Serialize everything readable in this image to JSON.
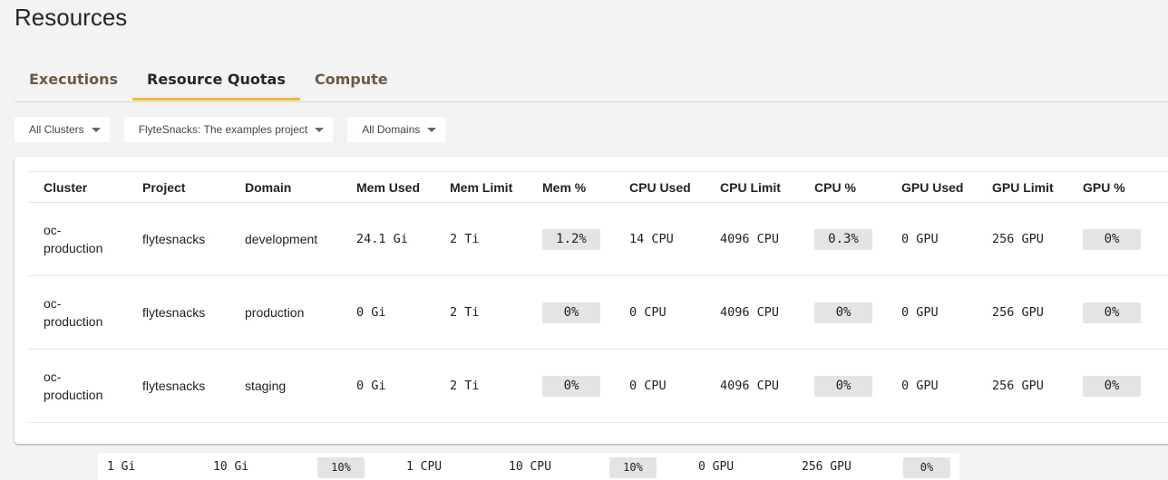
{
  "page_title": "Resources",
  "tabs": [
    {
      "label": "Executions",
      "active": false
    },
    {
      "label": "Resource Quotas",
      "active": true
    },
    {
      "label": "Compute",
      "active": false
    }
  ],
  "filters": [
    {
      "label": "All Clusters"
    },
    {
      "label": "FlyteSnacks: The examples project"
    },
    {
      "label": "All Domains"
    }
  ],
  "table": {
    "columns": [
      "Cluster",
      "Project",
      "Domain",
      "Mem Used",
      "Mem Limit",
      "Mem %",
      "CPU Used",
      "CPU Limit",
      "CPU %",
      "GPU Used",
      "GPU Limit",
      "GPU %"
    ],
    "rows": [
      [
        "oc-production",
        "flytesnacks",
        "development",
        "24.1 Gi",
        "2 Ti",
        "1.2%",
        "14 CPU",
        "4096 CPU",
        "0.3%",
        "0 GPU",
        "256 GPU",
        "0%"
      ],
      [
        "oc-production",
        "flytesnacks",
        "production",
        "0 Gi",
        "2 Ti",
        "0%",
        "0 CPU",
        "4096 CPU",
        "0%",
        "0 GPU",
        "256 GPU",
        "0%"
      ],
      [
        "oc-production",
        "flytesnacks",
        "staging",
        "0 Gi",
        "2 Ti",
        "0%",
        "0 CPU",
        "4096 CPU",
        "0%",
        "0 GPU",
        "256 GPU",
        "0%"
      ]
    ]
  },
  "partial_row": [
    "1 Gi",
    "10 Gi",
    "10%",
    "1 CPU",
    "10 CPU",
    "10%",
    "0 GPU",
    "256 GPU",
    "0%"
  ],
  "colors": {
    "accent": "#f7b733",
    "background": "#f2f3f2",
    "badge": "#e4e4e4"
  }
}
